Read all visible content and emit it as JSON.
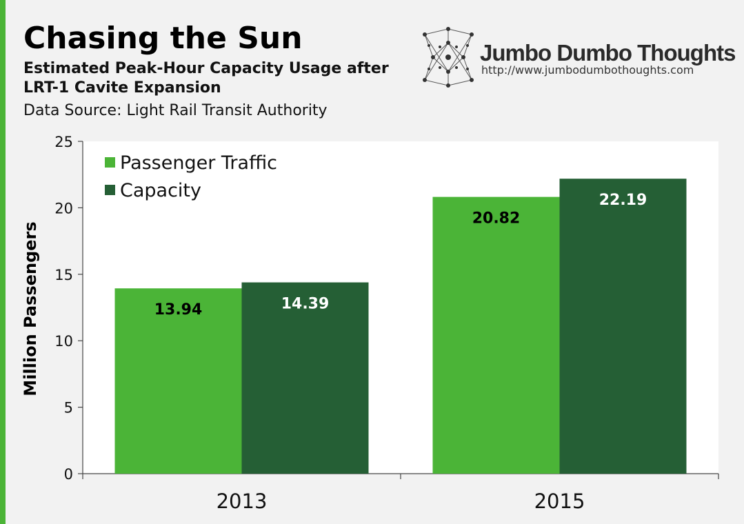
{
  "header": {
    "title": "Chasing the Sun",
    "subtitle": "Estimated Peak-Hour Capacity Usage after LRT-1 Cavite Expansion",
    "source": "Data Source: Light Rail Transit Authority"
  },
  "brand": {
    "name": "Jumbo Dumbo Thoughts",
    "url": "http://www.jumbodumbothoughts.com"
  },
  "colors": {
    "accent": "#4bb437",
    "passenger": "#4bb437",
    "capacity": "#255f35"
  },
  "chart_data": {
    "type": "bar",
    "title": "Chasing the Sun",
    "subtitle": "Estimated Peak-Hour Capacity Usage after LRT-1 Cavite Expansion",
    "categories": [
      "2013",
      "2015"
    ],
    "series": [
      {
        "name": "Passenger Traffic",
        "values": [
          13.94,
          20.82
        ],
        "color": "#4bb437",
        "label_color": "#000000"
      },
      {
        "name": "Capacity",
        "values": [
          14.39,
          22.19
        ],
        "color": "#255f35",
        "label_color": "#ffffff"
      }
    ],
    "xlabel": "",
    "ylabel": "Million Passengers",
    "ylim": [
      0,
      25
    ],
    "yticks": [
      0,
      5,
      10,
      15,
      20,
      25
    ],
    "grid": false,
    "legend": "top-left"
  }
}
